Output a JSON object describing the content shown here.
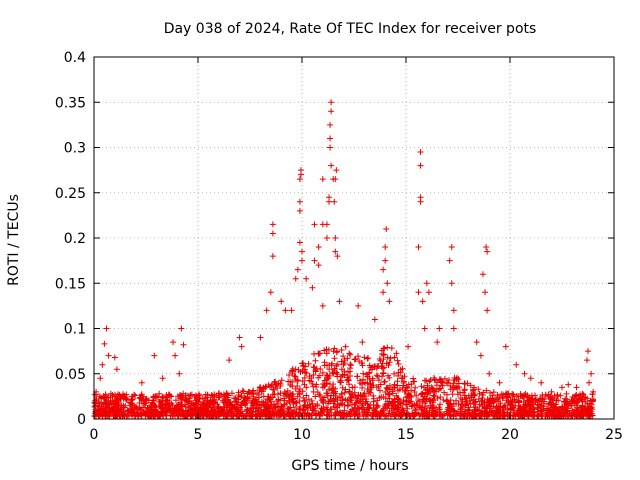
{
  "chart_data": {
    "type": "scatter",
    "title": "Day 038 of 2024, Rate Of TEC Index for receiver pots",
    "xlabel": "GPS time / hours",
    "ylabel": "ROTI / TECUs",
    "xlim": [
      0,
      25
    ],
    "ylim": [
      0,
      0.4
    ],
    "x_ticks": [
      "0",
      "5",
      "10",
      "15",
      "20",
      "25"
    ],
    "y_ticks": [
      "0",
      "0.05",
      "0.1",
      "0.15",
      "0.2",
      "0.25",
      "0.3",
      "0.35",
      "0.4"
    ],
    "grid": true,
    "marker": "+",
    "series": [
      {
        "name": "pots",
        "color": "#ee0000",
        "points": [
          [
            0.1,
            0.03
          ],
          [
            0.3,
            0.045
          ],
          [
            0.4,
            0.06
          ],
          [
            0.5,
            0.083
          ],
          [
            0.6,
            0.1
          ],
          [
            0.7,
            0.07
          ],
          [
            1.0,
            0.068
          ],
          [
            1.1,
            0.055
          ],
          [
            2.3,
            0.04
          ],
          [
            2.9,
            0.07
          ],
          [
            3.3,
            0.045
          ],
          [
            3.8,
            0.085
          ],
          [
            3.9,
            0.07
          ],
          [
            4.1,
            0.05
          ],
          [
            4.2,
            0.1
          ],
          [
            4.3,
            0.082
          ],
          [
            6.5,
            0.065
          ],
          [
            7.0,
            0.09
          ],
          [
            7.1,
            0.08
          ],
          [
            8.0,
            0.09
          ],
          [
            8.3,
            0.12
          ],
          [
            8.5,
            0.14
          ],
          [
            8.6,
            0.18
          ],
          [
            8.6,
            0.205
          ],
          [
            8.6,
            0.215
          ],
          [
            9.0,
            0.13
          ],
          [
            9.2,
            0.12
          ],
          [
            9.5,
            0.12
          ],
          [
            9.7,
            0.155
          ],
          [
            9.8,
            0.165
          ],
          [
            9.9,
            0.195
          ],
          [
            9.9,
            0.23
          ],
          [
            9.9,
            0.24
          ],
          [
            9.9,
            0.265
          ],
          [
            9.95,
            0.27
          ],
          [
            9.95,
            0.275
          ],
          [
            10.0,
            0.175
          ],
          [
            10.0,
            0.185
          ],
          [
            10.2,
            0.155
          ],
          [
            10.5,
            0.145
          ],
          [
            10.6,
            0.175
          ],
          [
            10.6,
            0.215
          ],
          [
            10.8,
            0.19
          ],
          [
            10.8,
            0.17
          ],
          [
            11.0,
            0.125
          ],
          [
            11.0,
            0.215
          ],
          [
            11.0,
            0.265
          ],
          [
            11.2,
            0.2
          ],
          [
            11.2,
            0.215
          ],
          [
            11.3,
            0.24
          ],
          [
            11.3,
            0.245
          ],
          [
            11.35,
            0.3
          ],
          [
            11.35,
            0.31
          ],
          [
            11.35,
            0.325
          ],
          [
            11.4,
            0.34
          ],
          [
            11.4,
            0.35
          ],
          [
            11.4,
            0.28
          ],
          [
            11.5,
            0.265
          ],
          [
            11.55,
            0.24
          ],
          [
            11.6,
            0.2
          ],
          [
            11.6,
            0.185
          ],
          [
            11.6,
            0.265
          ],
          [
            11.65,
            0.275
          ],
          [
            11.7,
            0.18
          ],
          [
            11.8,
            0.13
          ],
          [
            12.1,
            0.08
          ],
          [
            12.7,
            0.125
          ],
          [
            12.9,
            0.085
          ],
          [
            13.5,
            0.11
          ],
          [
            13.9,
            0.14
          ],
          [
            13.9,
            0.165
          ],
          [
            14.0,
            0.175
          ],
          [
            14.0,
            0.19
          ],
          [
            14.05,
            0.21
          ],
          [
            14.1,
            0.15
          ],
          [
            14.2,
            0.13
          ],
          [
            15.1,
            0.08
          ],
          [
            15.6,
            0.14
          ],
          [
            15.6,
            0.19
          ],
          [
            15.7,
            0.245
          ],
          [
            15.7,
            0.24
          ],
          [
            15.7,
            0.28
          ],
          [
            15.7,
            0.295
          ],
          [
            15.8,
            0.13
          ],
          [
            15.9,
            0.1
          ],
          [
            16.0,
            0.15
          ],
          [
            16.1,
            0.14
          ],
          [
            16.5,
            0.085
          ],
          [
            16.6,
            0.1
          ],
          [
            17.1,
            0.175
          ],
          [
            17.2,
            0.19
          ],
          [
            17.2,
            0.15
          ],
          [
            17.3,
            0.12
          ],
          [
            17.3,
            0.1
          ],
          [
            18.4,
            0.085
          ],
          [
            18.6,
            0.07
          ],
          [
            18.7,
            0.16
          ],
          [
            18.8,
            0.14
          ],
          [
            18.85,
            0.19
          ],
          [
            18.9,
            0.185
          ],
          [
            18.9,
            0.12
          ],
          [
            19.0,
            0.05
          ],
          [
            19.5,
            0.04
          ],
          [
            19.8,
            0.08
          ],
          [
            20.3,
            0.06
          ],
          [
            20.7,
            0.05
          ],
          [
            21.0,
            0.045
          ],
          [
            21.5,
            0.04
          ],
          [
            22.0,
            0.03
          ],
          [
            22.5,
            0.035
          ],
          [
            22.8,
            0.038
          ],
          [
            23.2,
            0.035
          ],
          [
            23.7,
            0.065
          ],
          [
            23.75,
            0.075
          ],
          [
            23.8,
            0.04
          ],
          [
            23.9,
            0.05
          ],
          [
            24.0,
            0.03
          ]
        ]
      }
    ]
  }
}
